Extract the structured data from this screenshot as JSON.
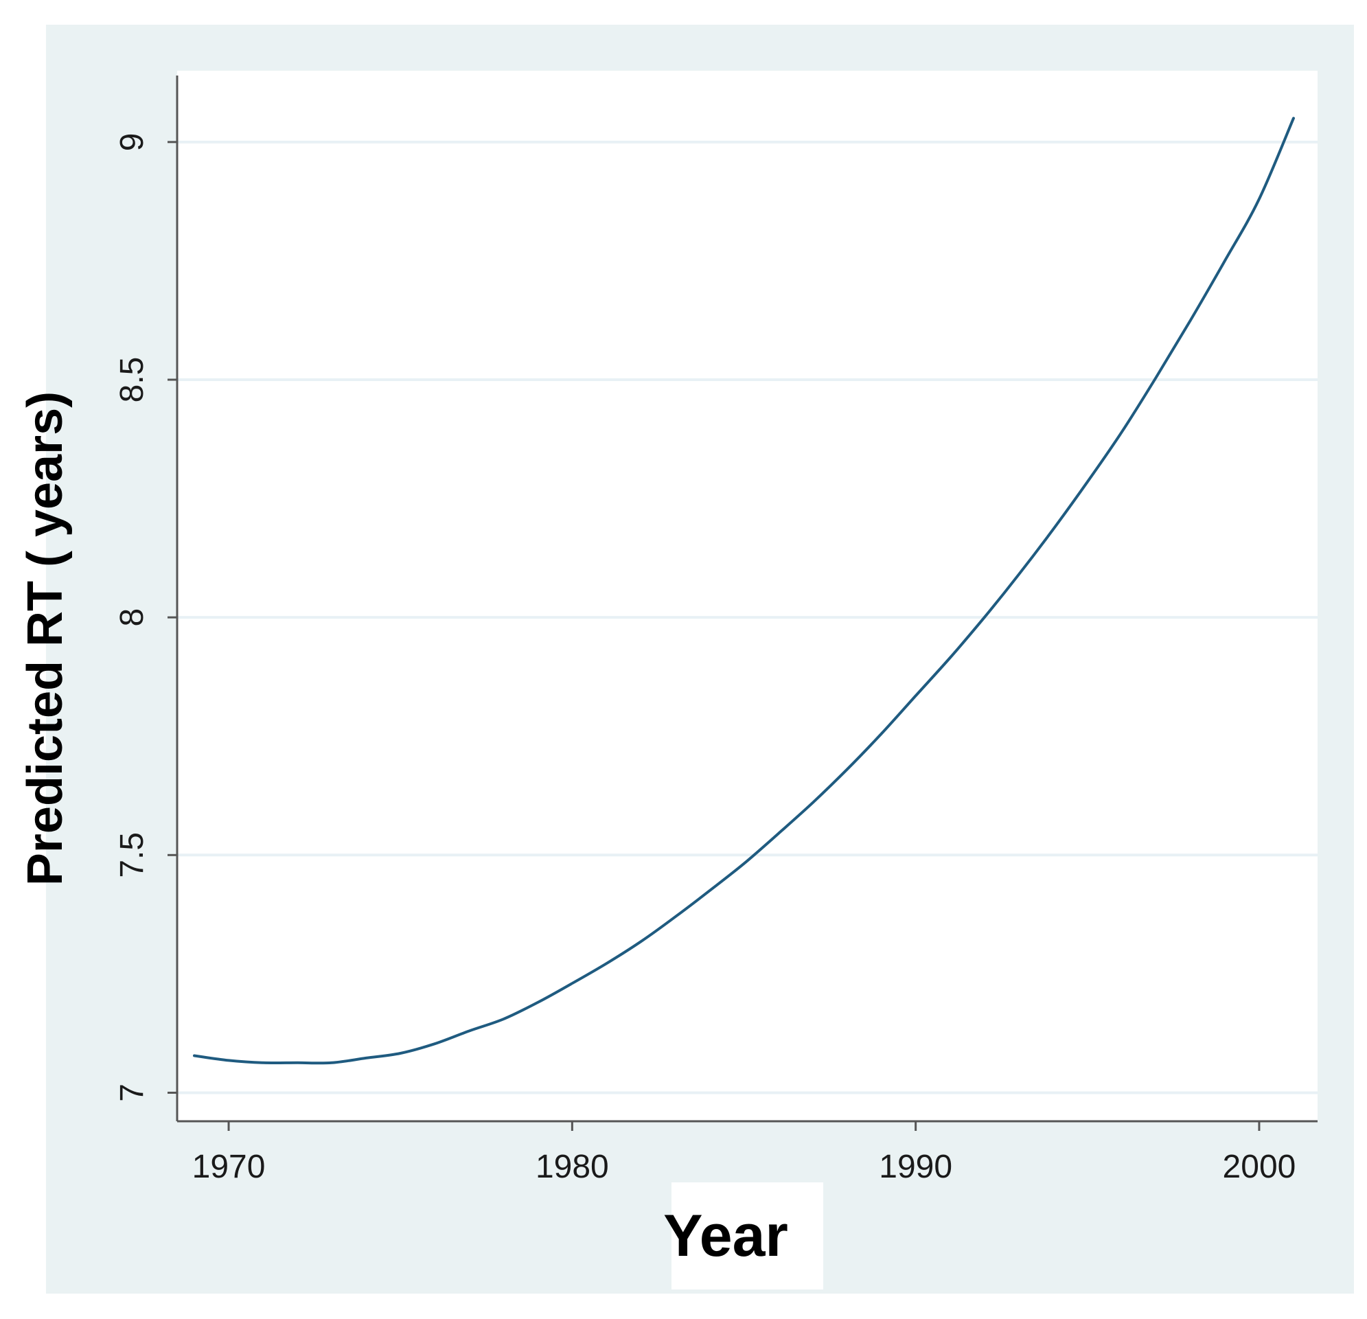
{
  "chart_data": {
    "type": "line",
    "title": "",
    "xlabel": "Year",
    "ylabel": "Predicted RT ( years)",
    "xlim": [
      1968.5,
      2001.7
    ],
    "ylim": [
      6.94,
      9.15
    ],
    "x_ticks": [
      1970,
      1980,
      1990,
      2000
    ],
    "y_ticks": [
      7,
      7.5,
      8,
      8.5,
      9
    ],
    "x_tick_labels": [
      "1970",
      "1980",
      "1990",
      "2000"
    ],
    "y_tick_labels": [
      "7",
      "7.5",
      "8",
      "8.5",
      "9"
    ],
    "grid": "horizontal",
    "legend": "none",
    "series": [
      {
        "x": [
          1969,
          1970,
          1971,
          1972,
          1973,
          1974,
          1975,
          1976,
          1977,
          1978,
          1979,
          1980,
          1981,
          1982,
          1983,
          1984,
          1985,
          1986,
          1987,
          1988,
          1989,
          1990,
          1991,
          1992,
          1993,
          1994,
          1995,
          1996,
          1997,
          1998,
          1999,
          2000,
          2001
        ],
        "y": [
          7.078,
          7.068,
          7.063,
          7.063,
          7.063,
          7.073,
          7.083,
          7.103,
          7.13,
          7.155,
          7.19,
          7.23,
          7.272,
          7.318,
          7.37,
          7.425,
          7.482,
          7.545,
          7.61,
          7.68,
          7.755,
          7.835,
          7.915,
          8.0,
          8.09,
          8.185,
          8.285,
          8.39,
          8.505,
          8.625,
          8.75,
          8.88,
          9.05
        ]
      }
    ],
    "colors": {
      "line": "#1f5b80",
      "plot_background": "#ffffff",
      "frame_background": "#eaf2f3",
      "gridline": "#e8f1f5",
      "axis": "#555555"
    }
  }
}
